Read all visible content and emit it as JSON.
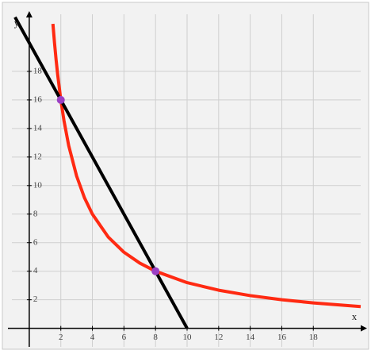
{
  "chart_data": {
    "type": "line",
    "xlabel": "x",
    "ylabel": "y",
    "xlim": [
      -1.1,
      21
    ],
    "ylim": [
      -1.3,
      22
    ],
    "xticks": [
      2,
      4,
      6,
      8,
      10,
      12,
      14,
      16,
      18
    ],
    "yticks": [
      2,
      4,
      6,
      8,
      10,
      12,
      14,
      16,
      18
    ],
    "grid": true,
    "series": [
      {
        "type": "line",
        "color": "#ff2a12",
        "x": [
          1.5,
          1.6,
          1.7,
          1.8,
          2,
          2.2,
          2.5,
          3,
          3.5,
          4,
          5,
          6,
          7,
          8,
          10,
          12,
          14,
          16,
          18,
          21
        ],
        "values": [
          21.33,
          20,
          18.82,
          17.78,
          16,
          14.55,
          12.8,
          10.67,
          9.14,
          8,
          6.4,
          5.33,
          4.57,
          4,
          3.2,
          2.67,
          2.29,
          2,
          1.78,
          1.52
        ]
      },
      {
        "type": "line",
        "color": "#000000",
        "x": [
          -0.9,
          10
        ],
        "values": [
          21.8,
          0
        ]
      },
      {
        "type": "scatter",
        "color": "#9b3fc4",
        "x": [
          2,
          8
        ],
        "values": [
          16,
          4
        ]
      }
    ]
  }
}
